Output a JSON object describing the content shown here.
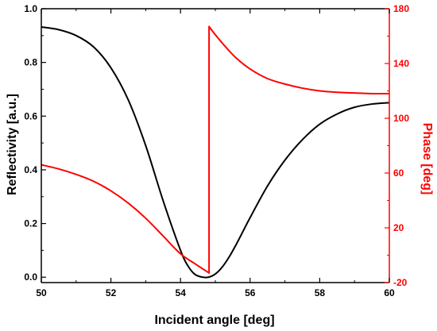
{
  "chart_data": {
    "type": "line",
    "xlabel": "Incident angle [deg]",
    "ylabel": "Reflectivity [a.u.]",
    "y2label": "Phase [deg]",
    "xlim": [
      50,
      60
    ],
    "ylim": [
      -0.02,
      1.0
    ],
    "y2lim": [
      -20,
      180
    ],
    "x_ticks": [
      50,
      52,
      54,
      56,
      58,
      60
    ],
    "y_ticks": [
      0.0,
      0.2,
      0.4,
      0.6,
      0.8,
      1.0
    ],
    "y_tick_labels": [
      "0.0",
      "0.2",
      "0.4",
      "0.6",
      "0.8",
      "1.0"
    ],
    "y2_ticks": [
      -20,
      20,
      60,
      100,
      140,
      180
    ],
    "grid": false,
    "colors": {
      "reflectivity": "#000000",
      "phase": "#ff0000"
    },
    "series": [
      {
        "axis": "left",
        "color": "#000000",
        "x": [
          50,
          50.5,
          51,
          51.5,
          52,
          52.5,
          53,
          53.5,
          54,
          54.2,
          54.4,
          54.6,
          54.8,
          55,
          55.2,
          55.4,
          55.6,
          55.8,
          56,
          56.5,
          57,
          57.5,
          58,
          58.5,
          59,
          59.5,
          60
        ],
        "y": [
          0.932,
          0.922,
          0.9,
          0.858,
          0.78,
          0.66,
          0.49,
          0.285,
          0.1,
          0.045,
          0.012,
          0.001,
          0.0,
          0.012,
          0.038,
          0.076,
          0.122,
          0.172,
          0.222,
          0.34,
          0.436,
          0.512,
          0.57,
          0.608,
          0.633,
          0.645,
          0.65
        ]
      },
      {
        "axis": "right",
        "color": "#ff0000",
        "x": [
          50,
          50.5,
          51,
          51.5,
          52,
          52.5,
          53,
          53.5,
          54,
          54.4,
          54.82,
          54.82,
          55,
          55.3,
          55.6,
          56,
          56.5,
          57,
          57.5,
          58,
          58.5,
          59,
          59.5,
          60
        ],
        "y": [
          66,
          63,
          59,
          54,
          47,
          38,
          27,
          14,
          1,
          -6,
          -13,
          167,
          161,
          152,
          144,
          136,
          129,
          125,
          122,
          120,
          119,
          118.5,
          118,
          118
        ]
      }
    ]
  }
}
